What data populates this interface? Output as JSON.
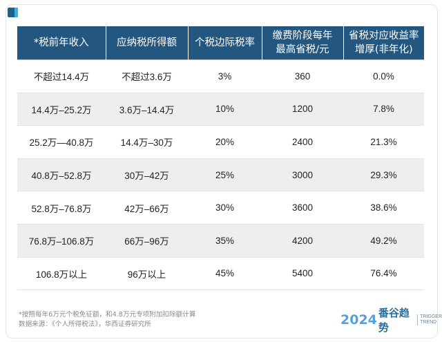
{
  "table": {
    "headers": [
      [
        "*税前年收入"
      ],
      [
        "应纳税所得额"
      ],
      [
        "个税边际税率"
      ],
      [
        "缴费阶段每年",
        "最高省税/元"
      ],
      [
        "省税对应收益率",
        "增厚(非年化)"
      ]
    ],
    "rows": [
      [
        "不超过14.4万",
        "不超过3.6万",
        "3%",
        "360",
        "0.0%"
      ],
      [
        "14.4万–25.2万",
        "3.6万–14.4万",
        "10%",
        "1200",
        "7.8%"
      ],
      [
        "25.2万—40.8万",
        "14.4万–30万",
        "20%",
        "2400",
        "21.3%"
      ],
      [
        "40.8万–52.8万",
        "30万–42万",
        "25%",
        "3000",
        "29.3%"
      ],
      [
        "52.8万–76.8万",
        "42万–66万",
        "30%",
        "3600",
        "38.6%"
      ],
      [
        "76.8万–106.8万",
        "66万–96万",
        "35%",
        "4200",
        "49.2%"
      ],
      [
        "106.8万以上",
        "96万以上",
        "45%",
        "5400",
        "76.4%"
      ]
    ]
  },
  "footnote": {
    "line1": "*按照每年6万元个税免征额，和4.8万元专项附加扣除额计算",
    "line2": "数据来源：《个人所得税法》，华西证券研究所"
  },
  "logo": {
    "year": "2024",
    "name_cn": "番谷趋势",
    "name_en_1": "TRIGGER",
    "name_en_2": "TREND"
  },
  "colors": {
    "header_bg": "#24577f",
    "stripe_bg": "#eeeeee",
    "logo_blue": "#5aa0d6"
  }
}
